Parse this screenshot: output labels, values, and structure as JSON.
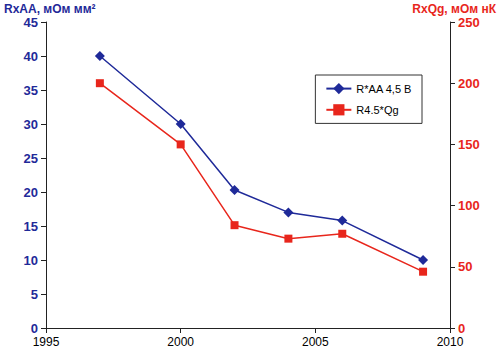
{
  "chart_data": {
    "type": "line",
    "x": [
      1997,
      2000,
      2002,
      2004,
      2006,
      2009
    ],
    "xlim": [
      1995,
      2010
    ],
    "xticks": [
      1995,
      2000,
      2005,
      2010
    ],
    "ylim": [
      0,
      45
    ],
    "yticks": [
      0,
      5,
      10,
      15,
      20,
      25,
      30,
      35,
      40,
      45
    ],
    "y2lim": [
      0,
      250
    ],
    "y2ticks": [
      0,
      50,
      100,
      150,
      200,
      250
    ],
    "ylabel": "RxAA, мОм мм²",
    "y2label": "RxQg, мОм нК",
    "grid": false,
    "legend": "upper right",
    "series": [
      {
        "name": "R*AA 4,5 В",
        "color": "#1f2a99",
        "marker": "diamond",
        "axis": "y",
        "values": [
          40,
          30,
          20.3,
          17,
          15.8,
          10
        ]
      },
      {
        "name": "R4.5*Qg",
        "color": "#e8261c",
        "marker": "square",
        "axis": "y2",
        "values": [
          200,
          150,
          84,
          73,
          77,
          46
        ]
      }
    ]
  }
}
